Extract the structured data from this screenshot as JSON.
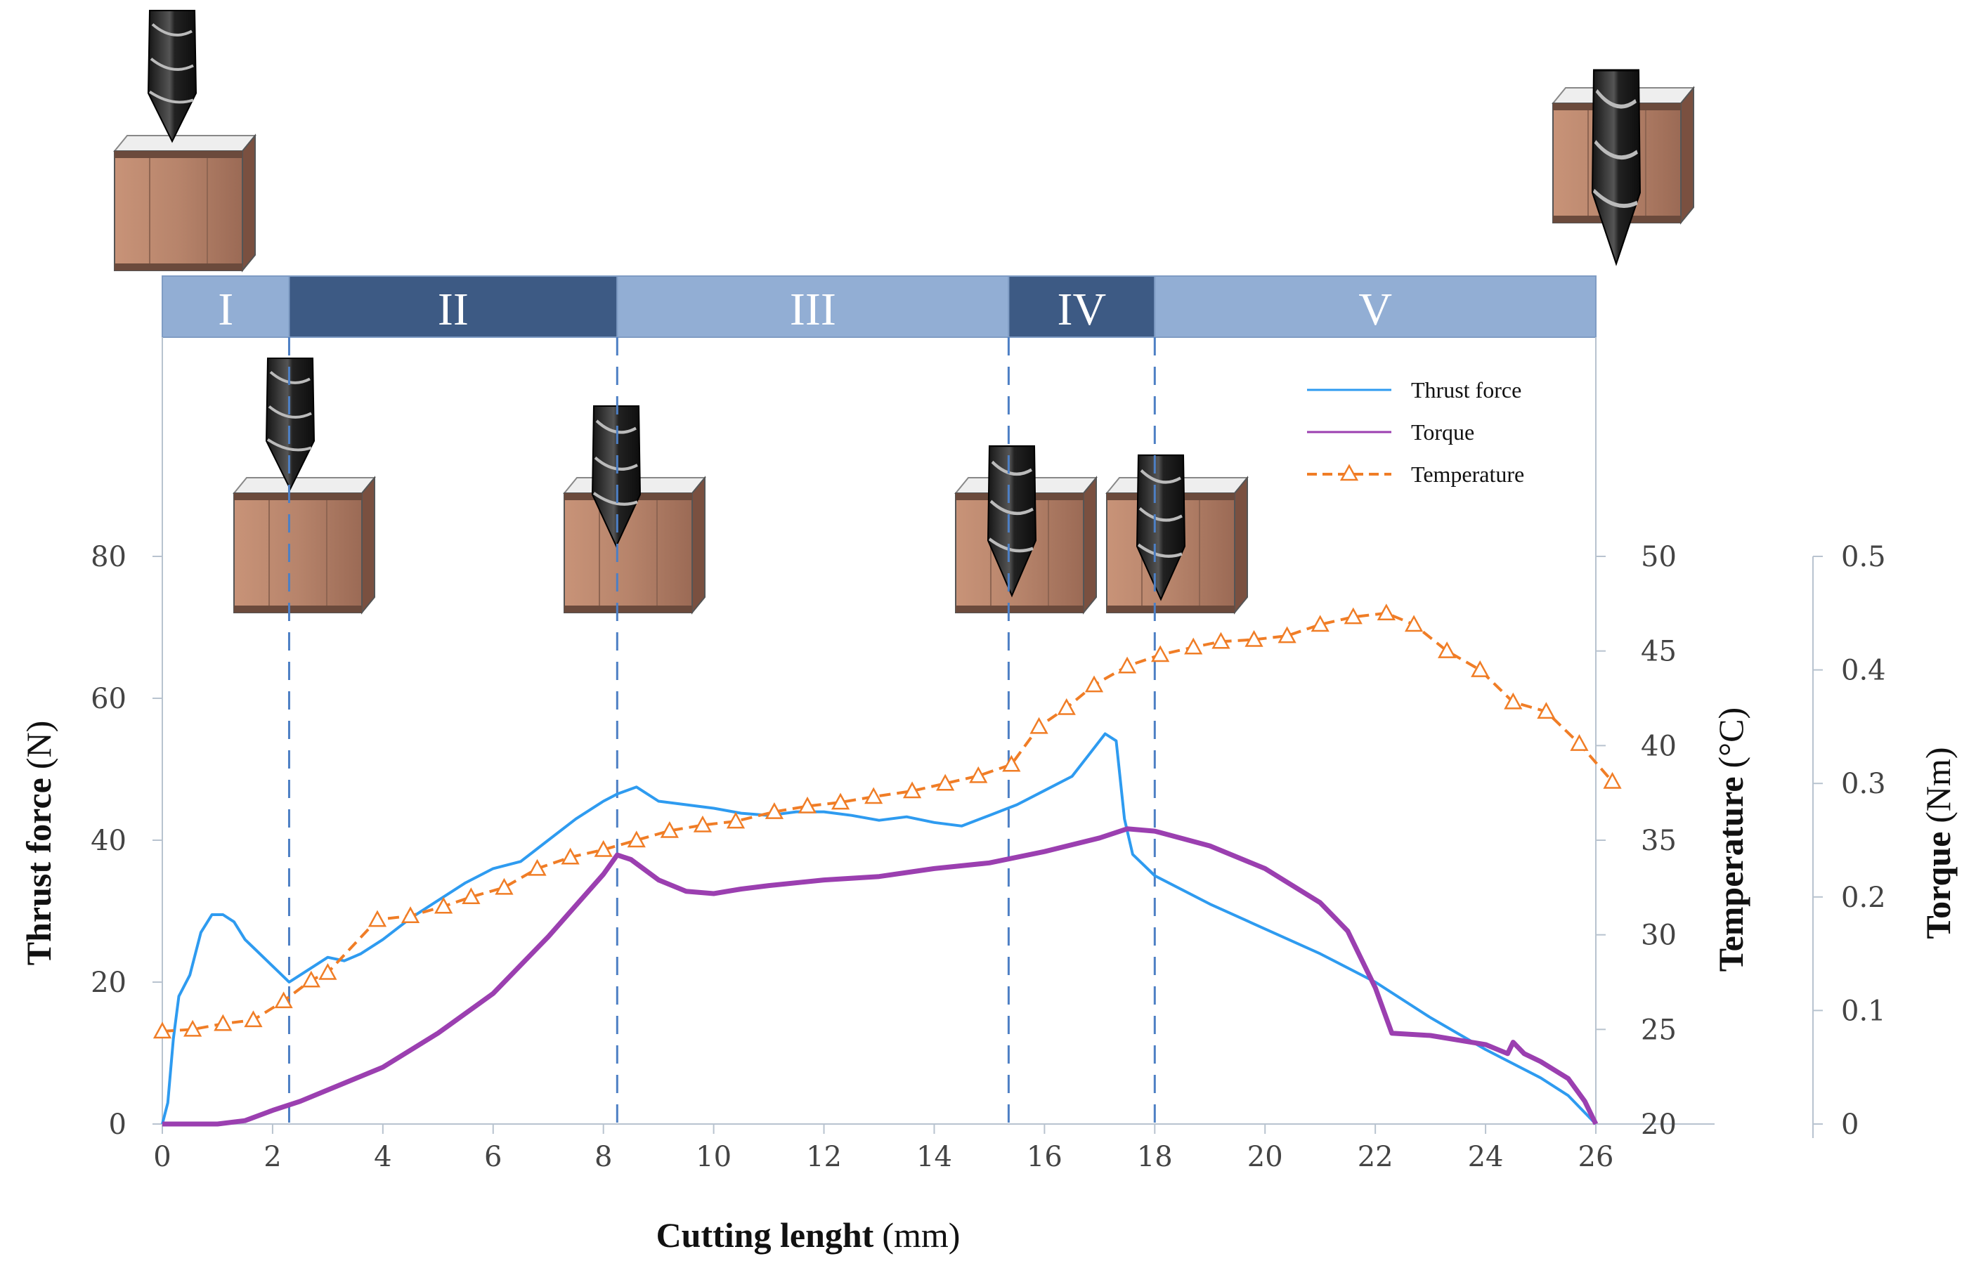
{
  "chart_data": {
    "type": "line",
    "xlabel": "Cutting lenght",
    "xlabel_unit": "(mm)",
    "xlim": [
      0,
      26
    ],
    "x_ticks": [
      "0",
      "2",
      "4",
      "6",
      "8",
      "10",
      "12",
      "14",
      "16",
      "18",
      "20",
      "22",
      "24",
      "26"
    ],
    "y_left": {
      "label": "Thrust force",
      "unit": "(N)",
      "range": [
        0,
        80
      ],
      "ticks": [
        "0",
        "20",
        "40",
        "60",
        "80"
      ]
    },
    "y_right1": {
      "label": "Temperature",
      "unit": "(°C)",
      "range": [
        20,
        50
      ],
      "ticks": [
        "20",
        "25",
        "30",
        "35",
        "40",
        "45",
        "50"
      ]
    },
    "y_right2": {
      "label": "Torque",
      "unit": "(Nm)",
      "range": [
        0,
        0.5
      ],
      "ticks": [
        "0",
        "0.1",
        "0.2",
        "0.3",
        "0.4",
        "0.5"
      ]
    },
    "stages": [
      {
        "label": "I",
        "start": 0,
        "end": 2.3
      },
      {
        "label": "II",
        "start": 2.3,
        "end": 8.25
      },
      {
        "label": "III",
        "start": 8.25,
        "end": 15.35
      },
      {
        "label": "IV",
        "start": 15.35,
        "end": 18
      },
      {
        "label": "V",
        "start": 18,
        "end": 26
      }
    ],
    "stage_boundaries": [
      2.3,
      8.25,
      15.35,
      18
    ],
    "legend": [
      "Thrust force",
      "Torque",
      "Temperature"
    ],
    "series": [
      {
        "name": "Thrust force",
        "axis": "left",
        "color": "#2e9bf0",
        "points": [
          [
            0,
            0
          ],
          [
            0.1,
            3
          ],
          [
            0.2,
            12
          ],
          [
            0.3,
            18
          ],
          [
            0.5,
            21
          ],
          [
            0.7,
            27
          ],
          [
            0.9,
            29.5
          ],
          [
            1.1,
            29.5
          ],
          [
            1.3,
            28.5
          ],
          [
            1.5,
            26
          ],
          [
            1.7,
            24.5
          ],
          [
            1.9,
            23
          ],
          [
            2.1,
            21.5
          ],
          [
            2.3,
            20
          ],
          [
            2.5,
            21
          ],
          [
            2.8,
            22.5
          ],
          [
            3.0,
            23.5
          ],
          [
            3.3,
            23
          ],
          [
            3.6,
            24
          ],
          [
            4.0,
            26
          ],
          [
            4.5,
            29
          ],
          [
            5.0,
            31.5
          ],
          [
            5.5,
            34
          ],
          [
            6.0,
            36
          ],
          [
            6.5,
            37
          ],
          [
            7.0,
            40
          ],
          [
            7.5,
            43
          ],
          [
            8.0,
            45.5
          ],
          [
            8.25,
            46.5
          ],
          [
            8.6,
            47.5
          ],
          [
            9.0,
            45.5
          ],
          [
            9.5,
            45
          ],
          [
            10.0,
            44.5
          ],
          [
            10.5,
            43.8
          ],
          [
            11.0,
            43.5
          ],
          [
            11.5,
            44
          ],
          [
            12.0,
            44
          ],
          [
            12.5,
            43.5
          ],
          [
            13.0,
            42.8
          ],
          [
            13.5,
            43.3
          ],
          [
            14.0,
            42.5
          ],
          [
            14.5,
            42
          ],
          [
            15.0,
            43.5
          ],
          [
            15.5,
            45
          ],
          [
            16.0,
            47
          ],
          [
            16.5,
            49
          ],
          [
            16.8,
            52
          ],
          [
            17.1,
            55
          ],
          [
            17.3,
            54
          ],
          [
            17.45,
            43
          ],
          [
            17.6,
            38
          ],
          [
            18.0,
            35
          ],
          [
            19.0,
            31
          ],
          [
            20.0,
            27.5
          ],
          [
            21.0,
            24
          ],
          [
            22.0,
            20
          ],
          [
            23.0,
            15
          ],
          [
            24.0,
            10.5
          ],
          [
            25.0,
            6.5
          ],
          [
            25.5,
            4
          ],
          [
            26.0,
            0
          ]
        ]
      },
      {
        "name": "Torque",
        "axis": "right2",
        "color": "#9b3fb0",
        "points": [
          [
            0,
            0
          ],
          [
            1.0,
            0
          ],
          [
            1.5,
            0.003
          ],
          [
            2.0,
            0.012
          ],
          [
            2.5,
            0.02
          ],
          [
            3.0,
            0.03
          ],
          [
            4.0,
            0.05
          ],
          [
            5.0,
            0.08
          ],
          [
            6.0,
            0.115
          ],
          [
            7.0,
            0.165
          ],
          [
            8.0,
            0.22
          ],
          [
            8.25,
            0.237
          ],
          [
            8.5,
            0.233
          ],
          [
            9.0,
            0.215
          ],
          [
            9.5,
            0.205
          ],
          [
            10.0,
            0.203
          ],
          [
            10.5,
            0.207
          ],
          [
            11.0,
            0.21
          ],
          [
            12.0,
            0.215
          ],
          [
            13.0,
            0.218
          ],
          [
            14.0,
            0.225
          ],
          [
            15.0,
            0.23
          ],
          [
            16.0,
            0.24
          ],
          [
            17.0,
            0.252
          ],
          [
            17.5,
            0.26
          ],
          [
            18.0,
            0.258
          ],
          [
            19.0,
            0.245
          ],
          [
            20.0,
            0.225
          ],
          [
            21.0,
            0.195
          ],
          [
            21.5,
            0.17
          ],
          [
            22.0,
            0.12
          ],
          [
            22.3,
            0.08
          ],
          [
            23.0,
            0.078
          ],
          [
            24.0,
            0.07
          ],
          [
            24.4,
            0.062
          ],
          [
            24.5,
            0.072
          ],
          [
            24.7,
            0.062
          ],
          [
            25.0,
            0.055
          ],
          [
            25.5,
            0.04
          ],
          [
            25.8,
            0.02
          ],
          [
            26.0,
            0
          ]
        ]
      },
      {
        "name": "Temperature",
        "axis": "right1",
        "color": "#f07d26",
        "points": [
          [
            0,
            24.9
          ],
          [
            0.55,
            25.0
          ],
          [
            1.1,
            25.3
          ],
          [
            1.65,
            25.5
          ],
          [
            2.2,
            26.5
          ],
          [
            2.7,
            27.6
          ],
          [
            3.0,
            28.0
          ],
          [
            3.9,
            30.8
          ],
          [
            4.5,
            31.0
          ],
          [
            5.1,
            31.5
          ],
          [
            5.6,
            32.0
          ],
          [
            6.2,
            32.5
          ],
          [
            6.8,
            33.5
          ],
          [
            7.4,
            34.1
          ],
          [
            8.0,
            34.5
          ],
          [
            8.6,
            35.0
          ],
          [
            9.2,
            35.5
          ],
          [
            9.8,
            35.8
          ],
          [
            10.4,
            36.0
          ],
          [
            11.1,
            36.5
          ],
          [
            11.7,
            36.8
          ],
          [
            12.3,
            37.0
          ],
          [
            12.9,
            37.3
          ],
          [
            13.6,
            37.6
          ],
          [
            14.2,
            38.0
          ],
          [
            14.8,
            38.4
          ],
          [
            15.4,
            39.0
          ],
          [
            15.9,
            41.0
          ],
          [
            16.4,
            42.0
          ],
          [
            16.9,
            43.2
          ],
          [
            17.5,
            44.2
          ],
          [
            18.1,
            44.8
          ],
          [
            18.7,
            45.2
          ],
          [
            19.2,
            45.5
          ],
          [
            19.8,
            45.6
          ],
          [
            20.4,
            45.8
          ],
          [
            21.0,
            46.4
          ],
          [
            21.6,
            46.8
          ],
          [
            22.2,
            47.0
          ],
          [
            22.7,
            46.4
          ],
          [
            23.3,
            45.0
          ],
          [
            23.9,
            44.0
          ],
          [
            24.5,
            42.3
          ],
          [
            25.1,
            41.8
          ],
          [
            25.7,
            40.1
          ],
          [
            26.3,
            38.1
          ]
        ]
      }
    ]
  }
}
